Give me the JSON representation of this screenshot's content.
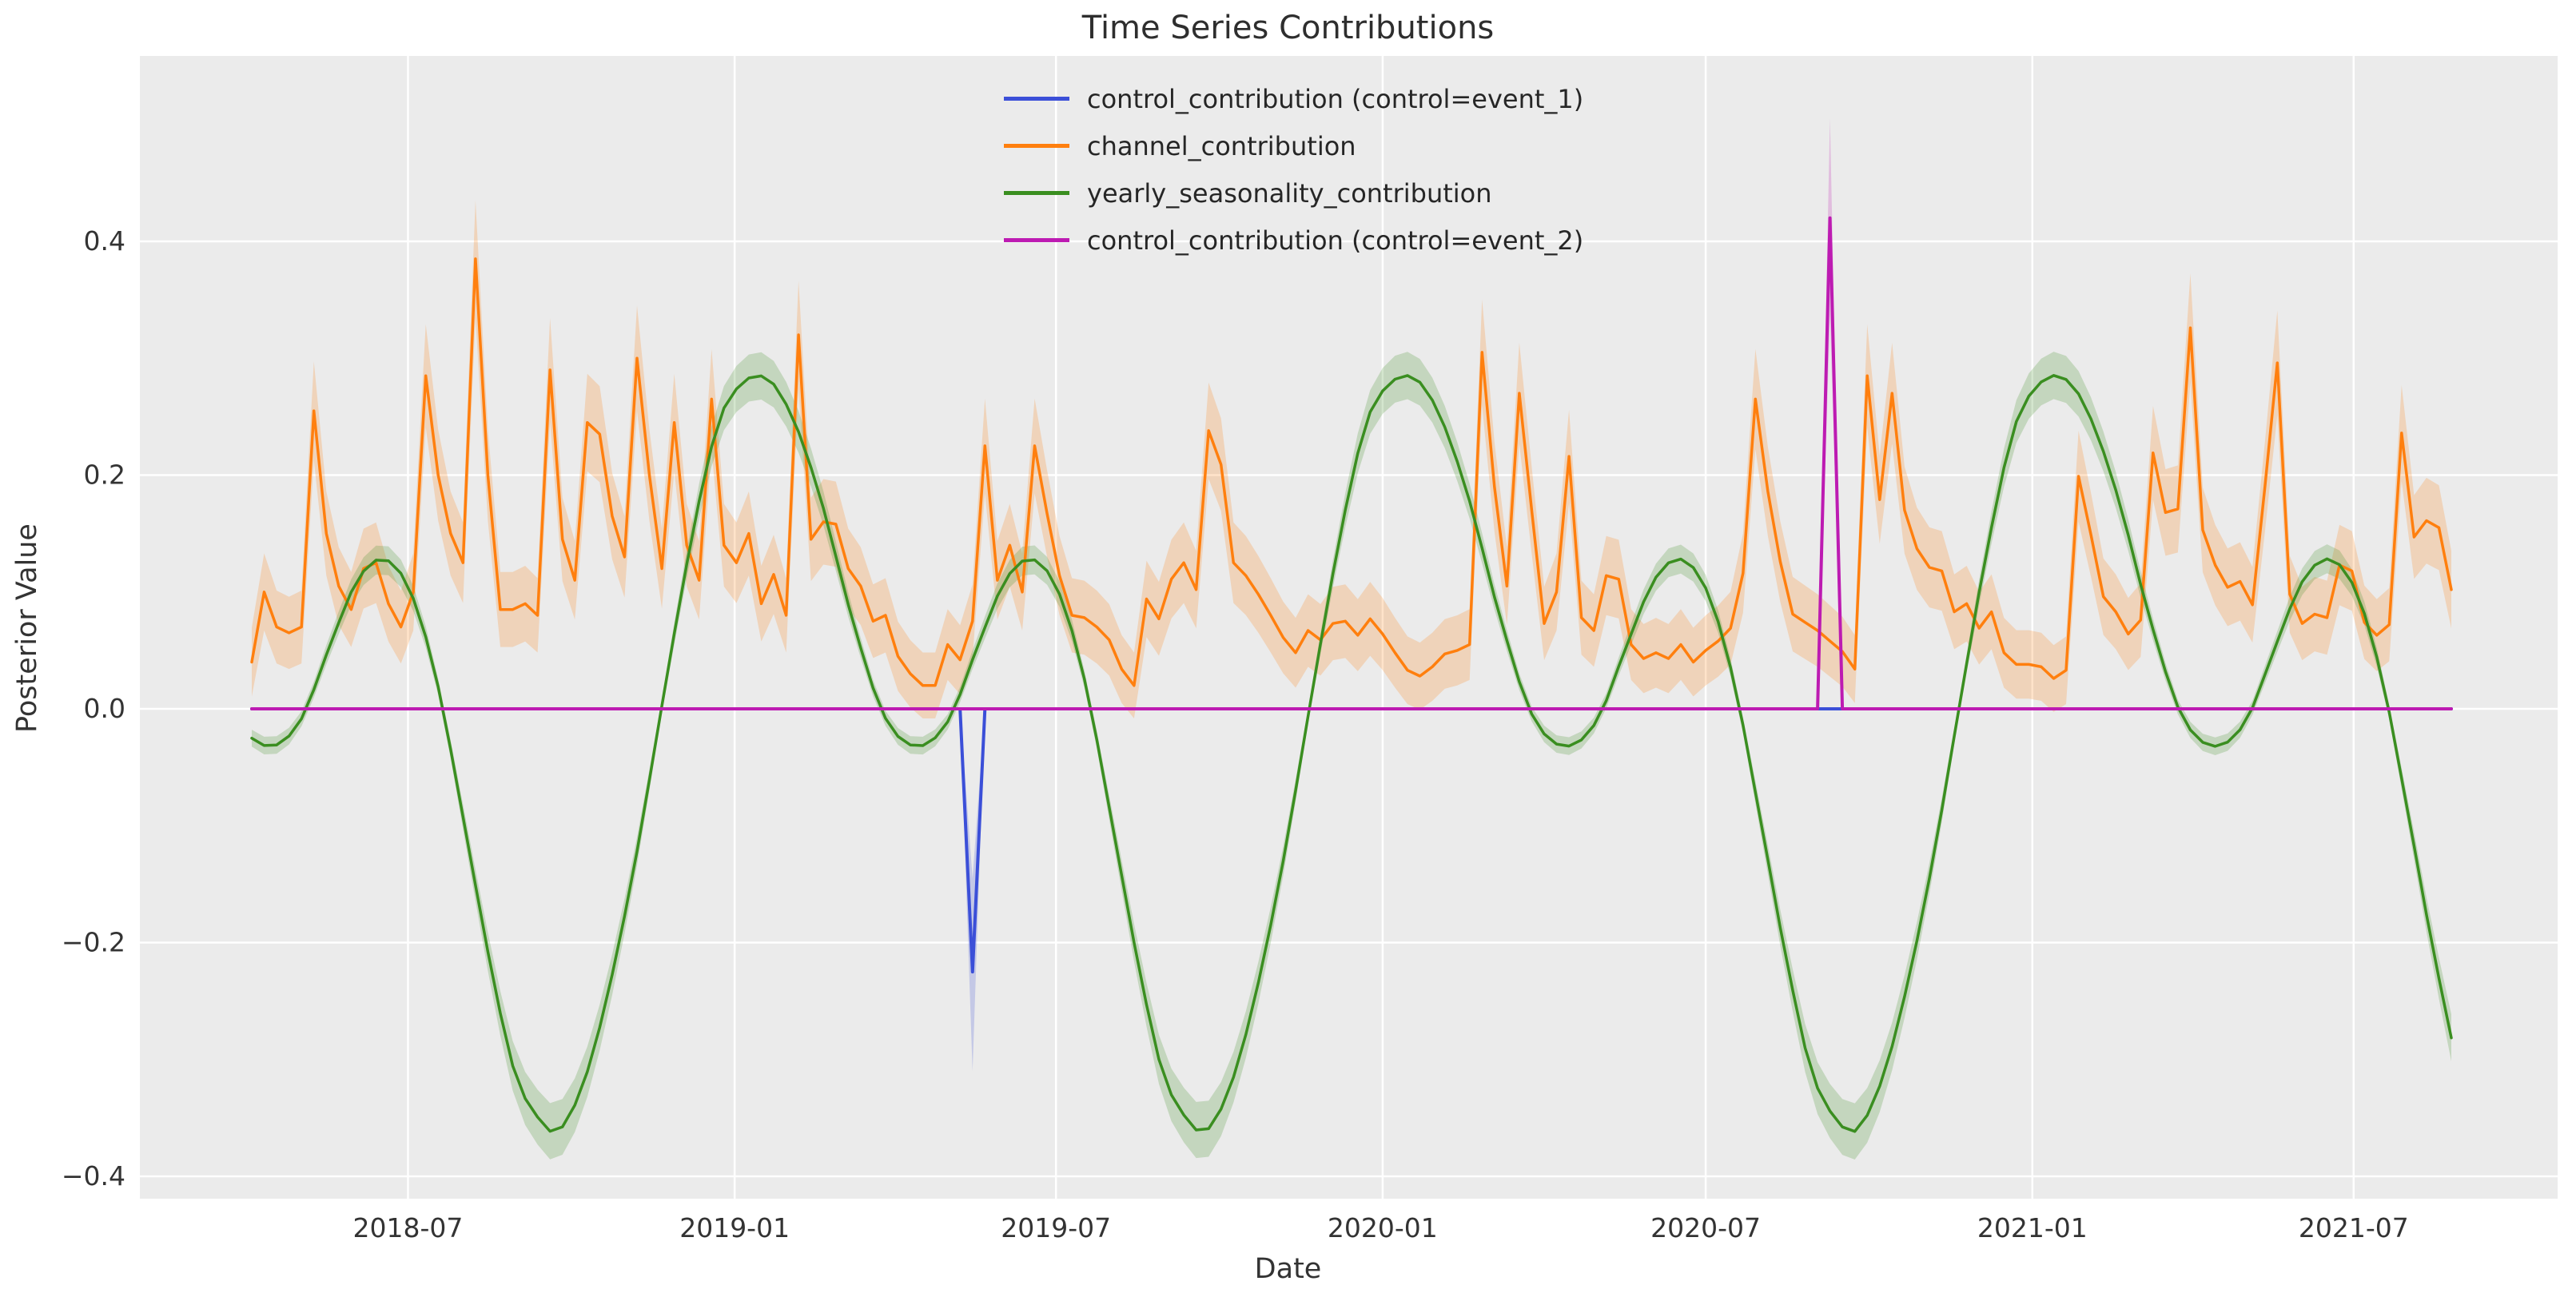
{
  "figure": {
    "title": "Time Series Contributions",
    "background_color": "#ffffff",
    "panel_color": "#ebebeb",
    "grid_color": "#ffffff",
    "text_color": "#333333"
  },
  "chart_data": {
    "type": "line",
    "title": "Time Series Contributions",
    "xlabel": "Date",
    "ylabel": "Posterior Value",
    "grid": true,
    "legend_position": "upper center",
    "ylim": [
      -0.419,
      0.559
    ],
    "y_ticks": [
      {
        "value": -0.4,
        "label": "−0.4"
      },
      {
        "value": -0.2,
        "label": "−0.2"
      },
      {
        "value": 0.0,
        "label": "0.0"
      },
      {
        "value": 0.2,
        "label": "0.2"
      },
      {
        "value": 0.4,
        "label": "0.4"
      }
    ],
    "x_ticks": [
      {
        "date": "2018-07-01",
        "label": "2018-07"
      },
      {
        "date": "2019-01-01",
        "label": "2019-01"
      },
      {
        "date": "2019-07-01",
        "label": "2019-07"
      },
      {
        "date": "2020-01-01",
        "label": "2020-01"
      },
      {
        "date": "2020-07-01",
        "label": "2020-07"
      },
      {
        "date": "2021-01-01",
        "label": "2021-01"
      },
      {
        "date": "2021-07-01",
        "label": "2021-07"
      }
    ],
    "x_start": "2018-04-04",
    "x_step_days": 7,
    "n_points": 178,
    "series": [
      {
        "name": "control_contribution (control=event_1)",
        "color": "#3b4fd8",
        "kind": "event",
        "baseline": 0.0,
        "spikes": [
          {
            "date": "2019-05-15",
            "value": -0.225,
            "band_low": -0.31,
            "band_high": -0.145
          }
        ]
      },
      {
        "name": "channel_contribution",
        "color": "#ff7f0e",
        "kind": "sampled",
        "band_rule": {
          "base": 0.027,
          "rel": 0.06
        },
        "values": [
          0.04,
          0.1,
          0.07,
          0.065,
          0.07,
          0.255,
          0.15,
          0.105,
          0.085,
          0.12,
          0.125,
          0.09,
          0.07,
          0.1,
          0.285,
          0.2,
          0.15,
          0.125,
          0.385,
          0.2,
          0.085,
          0.085,
          0.09,
          0.08,
          0.29,
          0.145,
          0.11,
          0.245,
          0.235,
          0.165,
          0.13,
          0.3,
          0.2,
          0.12,
          0.245,
          0.14,
          0.11,
          0.265,
          0.14,
          0.125,
          0.15,
          0.09,
          0.115,
          0.08,
          0.32,
          0.145,
          0.16,
          0.158,
          0.12,
          0.105,
          0.075,
          0.08,
          0.045,
          0.03,
          0.02,
          0.02,
          0.055,
          0.042,
          0.075,
          0.225,
          0.11,
          0.14,
          0.1,
          0.225,
          0.167,
          0.114,
          0.08,
          0.078,
          0.07,
          0.059,
          0.034,
          0.02,
          0.094,
          0.077,
          0.111,
          0.125,
          0.102,
          0.238,
          0.209,
          0.125,
          0.114,
          0.098,
          0.08,
          0.061,
          0.048,
          0.067,
          0.059,
          0.073,
          0.075,
          0.063,
          0.077,
          0.064,
          0.048,
          0.033,
          0.028,
          0.036,
          0.047,
          0.05,
          0.055,
          0.305,
          0.19,
          0.105,
          0.27,
          0.17,
          0.073,
          0.1,
          0.216,
          0.078,
          0.067,
          0.114,
          0.111,
          0.055,
          0.043,
          0.048,
          0.043,
          0.055,
          0.04,
          0.05,
          0.058,
          0.069,
          0.116,
          0.265,
          0.186,
          0.126,
          0.081,
          0.074,
          0.067,
          0.058,
          0.049,
          0.034,
          0.285,
          0.179,
          0.27,
          0.17,
          0.137,
          0.121,
          0.118,
          0.083,
          0.09,
          0.069,
          0.083,
          0.048,
          0.038,
          0.038,
          0.036,
          0.026,
          0.033,
          0.199,
          0.149,
          0.096,
          0.083,
          0.064,
          0.076,
          0.219,
          0.168,
          0.171,
          0.326,
          0.153,
          0.123,
          0.104,
          0.109,
          0.089,
          0.19,
          0.296,
          0.098,
          0.073,
          0.081,
          0.078,
          0.123,
          0.118,
          0.074,
          0.063,
          0.072,
          0.236,
          0.147,
          0.161,
          0.155,
          0.102
        ]
      },
      {
        "name": "yearly_seasonality_contribution",
        "color": "#3a8e20",
        "kind": "seasonal",
        "band_rule": {
          "base": 0.006,
          "rel": 0.05
        },
        "profile": [
          [
            0.0,
            0.272
          ],
          [
            0.04,
            0.285
          ],
          [
            0.08,
            0.26
          ],
          [
            0.13,
            0.185
          ],
          [
            0.18,
            0.08
          ],
          [
            0.23,
            -0.005
          ],
          [
            0.28,
            -0.032
          ],
          [
            0.33,
            -0.01
          ],
          [
            0.38,
            0.06
          ],
          [
            0.42,
            0.112
          ],
          [
            0.46,
            0.128
          ],
          [
            0.5,
            0.1
          ],
          [
            0.54,
            0.025
          ],
          [
            0.58,
            -0.09
          ],
          [
            0.62,
            -0.21
          ],
          [
            0.66,
            -0.31
          ],
          [
            0.7,
            -0.352
          ],
          [
            0.73,
            -0.36
          ],
          [
            0.77,
            -0.315
          ],
          [
            0.81,
            -0.23
          ],
          [
            0.85,
            -0.12
          ],
          [
            0.89,
            0.01
          ],
          [
            0.93,
            0.135
          ],
          [
            0.97,
            0.235
          ]
        ]
      },
      {
        "name": "control_contribution (control=event_2)",
        "color": "#bd1bb2",
        "kind": "event",
        "baseline": 0.0,
        "spikes": [
          {
            "date": "2020-09-09",
            "value": 0.42,
            "band_low": 0.335,
            "band_high": 0.505
          }
        ]
      }
    ]
  }
}
